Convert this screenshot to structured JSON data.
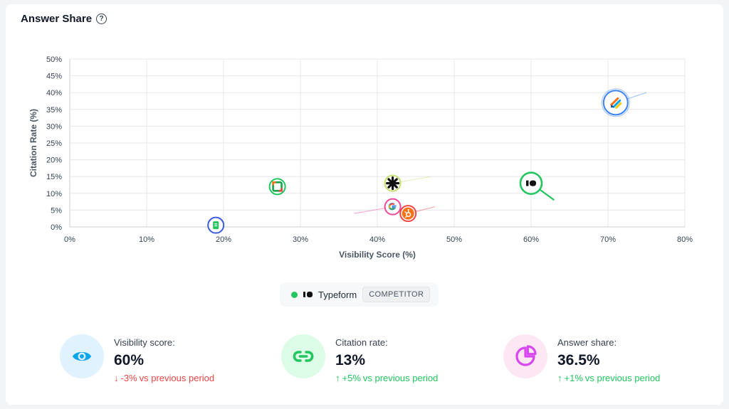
{
  "header": {
    "title": "Answer Share",
    "help_icon": "?"
  },
  "chart_data": {
    "type": "scatter",
    "title": "Answer Share",
    "xlabel": "Visibility Score (%)",
    "ylabel": "Citation Rate (%)",
    "xlim": [
      0,
      80
    ],
    "ylim": [
      0,
      50
    ],
    "x_ticks": [
      "0%",
      "10%",
      "20%",
      "30%",
      "40%",
      "50%",
      "60%",
      "70%",
      "80%"
    ],
    "y_ticks": [
      "0%",
      "5%",
      "10%",
      "15%",
      "20%",
      "25%",
      "30%",
      "35%",
      "40%",
      "45%",
      "50%"
    ],
    "grid": true,
    "points": [
      {
        "name": "Google Forms",
        "x": 19,
        "y": 0.5,
        "ring": "#3b5bdb",
        "logo": "google-forms",
        "trend": null
      },
      {
        "name": "Microsoft Forms",
        "x": 27,
        "y": 12,
        "ring": "#22c55e",
        "logo": "ms-square",
        "trend": null
      },
      {
        "name": "Asterisk Brand",
        "x": 42,
        "y": 13,
        "ring": "#c6e070",
        "logo": "asterisk",
        "trend": [
          47,
          15
        ]
      },
      {
        "name": "Google",
        "x": 42,
        "y": 6,
        "ring": "#ec4899",
        "logo": "google",
        "trend": [
          37,
          4
        ]
      },
      {
        "name": "HubSpot",
        "x": 44,
        "y": 4,
        "ring": "#ef4444",
        "logo": "hubspot",
        "trend": [
          47.5,
          6
        ]
      },
      {
        "name": "Typeform",
        "x": 60,
        "y": 13,
        "ring": "#22c55e",
        "logo": "typeform",
        "trend": [
          63,
          8
        ],
        "highlight": true
      },
      {
        "name": "Jotform",
        "x": 71,
        "y": 37,
        "ring": "#3b82f6",
        "logo": "jotform",
        "trend": [
          75,
          40
        ],
        "large": true
      }
    ]
  },
  "legend": {
    "name": "Typeform",
    "badge": "COMPETITOR",
    "color": "#22c55e"
  },
  "metrics": [
    {
      "label": "Visibility score:",
      "value": "60%",
      "delta_arrow": "↓",
      "delta_value": "-3%",
      "delta_text": "vs previous period",
      "direction": "down",
      "icon": "eye-icon",
      "bg": "#e0f2fe",
      "fg": "#0ea5e9"
    },
    {
      "label": "Citation rate:",
      "value": "13%",
      "delta_arrow": "↑",
      "delta_value": "+5%",
      "delta_text": "vs previous period",
      "direction": "up",
      "icon": "link-icon",
      "bg": "#dcfce7",
      "fg": "#22c55e"
    },
    {
      "label": "Answer share:",
      "value": "36.5%",
      "delta_arrow": "↑",
      "delta_value": "+1%",
      "delta_text": "vs previous period",
      "direction": "up",
      "icon": "pie-chart-icon",
      "bg": "#fce7f3",
      "fg": "#d946ef"
    }
  ]
}
